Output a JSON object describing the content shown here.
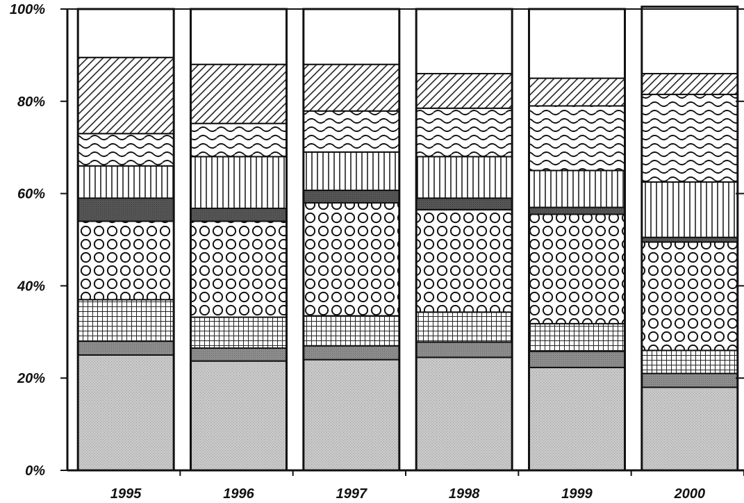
{
  "chart_data": {
    "type": "bar",
    "stacked": true,
    "percent": true,
    "title": "",
    "xlabel": "",
    "ylabel": "",
    "ylim": [
      0,
      100
    ],
    "yticks": [
      0,
      20,
      40,
      60,
      80,
      100
    ],
    "ytick_labels": [
      "0%",
      "20%",
      "40%",
      "60%",
      "80%",
      "100%"
    ],
    "categories": [
      "1995",
      "1996",
      "1997",
      "1998",
      "1999",
      "2000"
    ],
    "grid": false,
    "series": [
      {
        "pattern": "stipple-gray",
        "values": [
          25.0,
          23.7,
          24.0,
          24.5,
          22.3,
          18.0
        ]
      },
      {
        "pattern": "dark-gray",
        "values": [
          3.0,
          2.8,
          3.0,
          3.3,
          3.5,
          3.0
        ]
      },
      {
        "pattern": "grid",
        "values": [
          9.0,
          6.7,
          6.5,
          6.5,
          6.0,
          5.0
        ]
      },
      {
        "pattern": "circles",
        "values": [
          17.0,
          20.8,
          24.5,
          22.2,
          23.7,
          23.5
        ]
      },
      {
        "pattern": "solid-dark",
        "values": [
          5.0,
          2.8,
          2.7,
          2.5,
          1.5,
          1.0
        ]
      },
      {
        "pattern": "vertical",
        "values": [
          7.0,
          11.2,
          8.3,
          9.0,
          8.0,
          12.0
        ]
      },
      {
        "pattern": "waves",
        "values": [
          7.0,
          7.2,
          8.9,
          10.5,
          14.0,
          19.0
        ]
      },
      {
        "pattern": "diagonal",
        "values": [
          16.5,
          12.8,
          10.1,
          7.5,
          6.0,
          4.5
        ]
      },
      {
        "pattern": "white",
        "values": [
          10.5,
          12.0,
          12.0,
          14.0,
          15.0,
          14.5
        ]
      }
    ]
  }
}
